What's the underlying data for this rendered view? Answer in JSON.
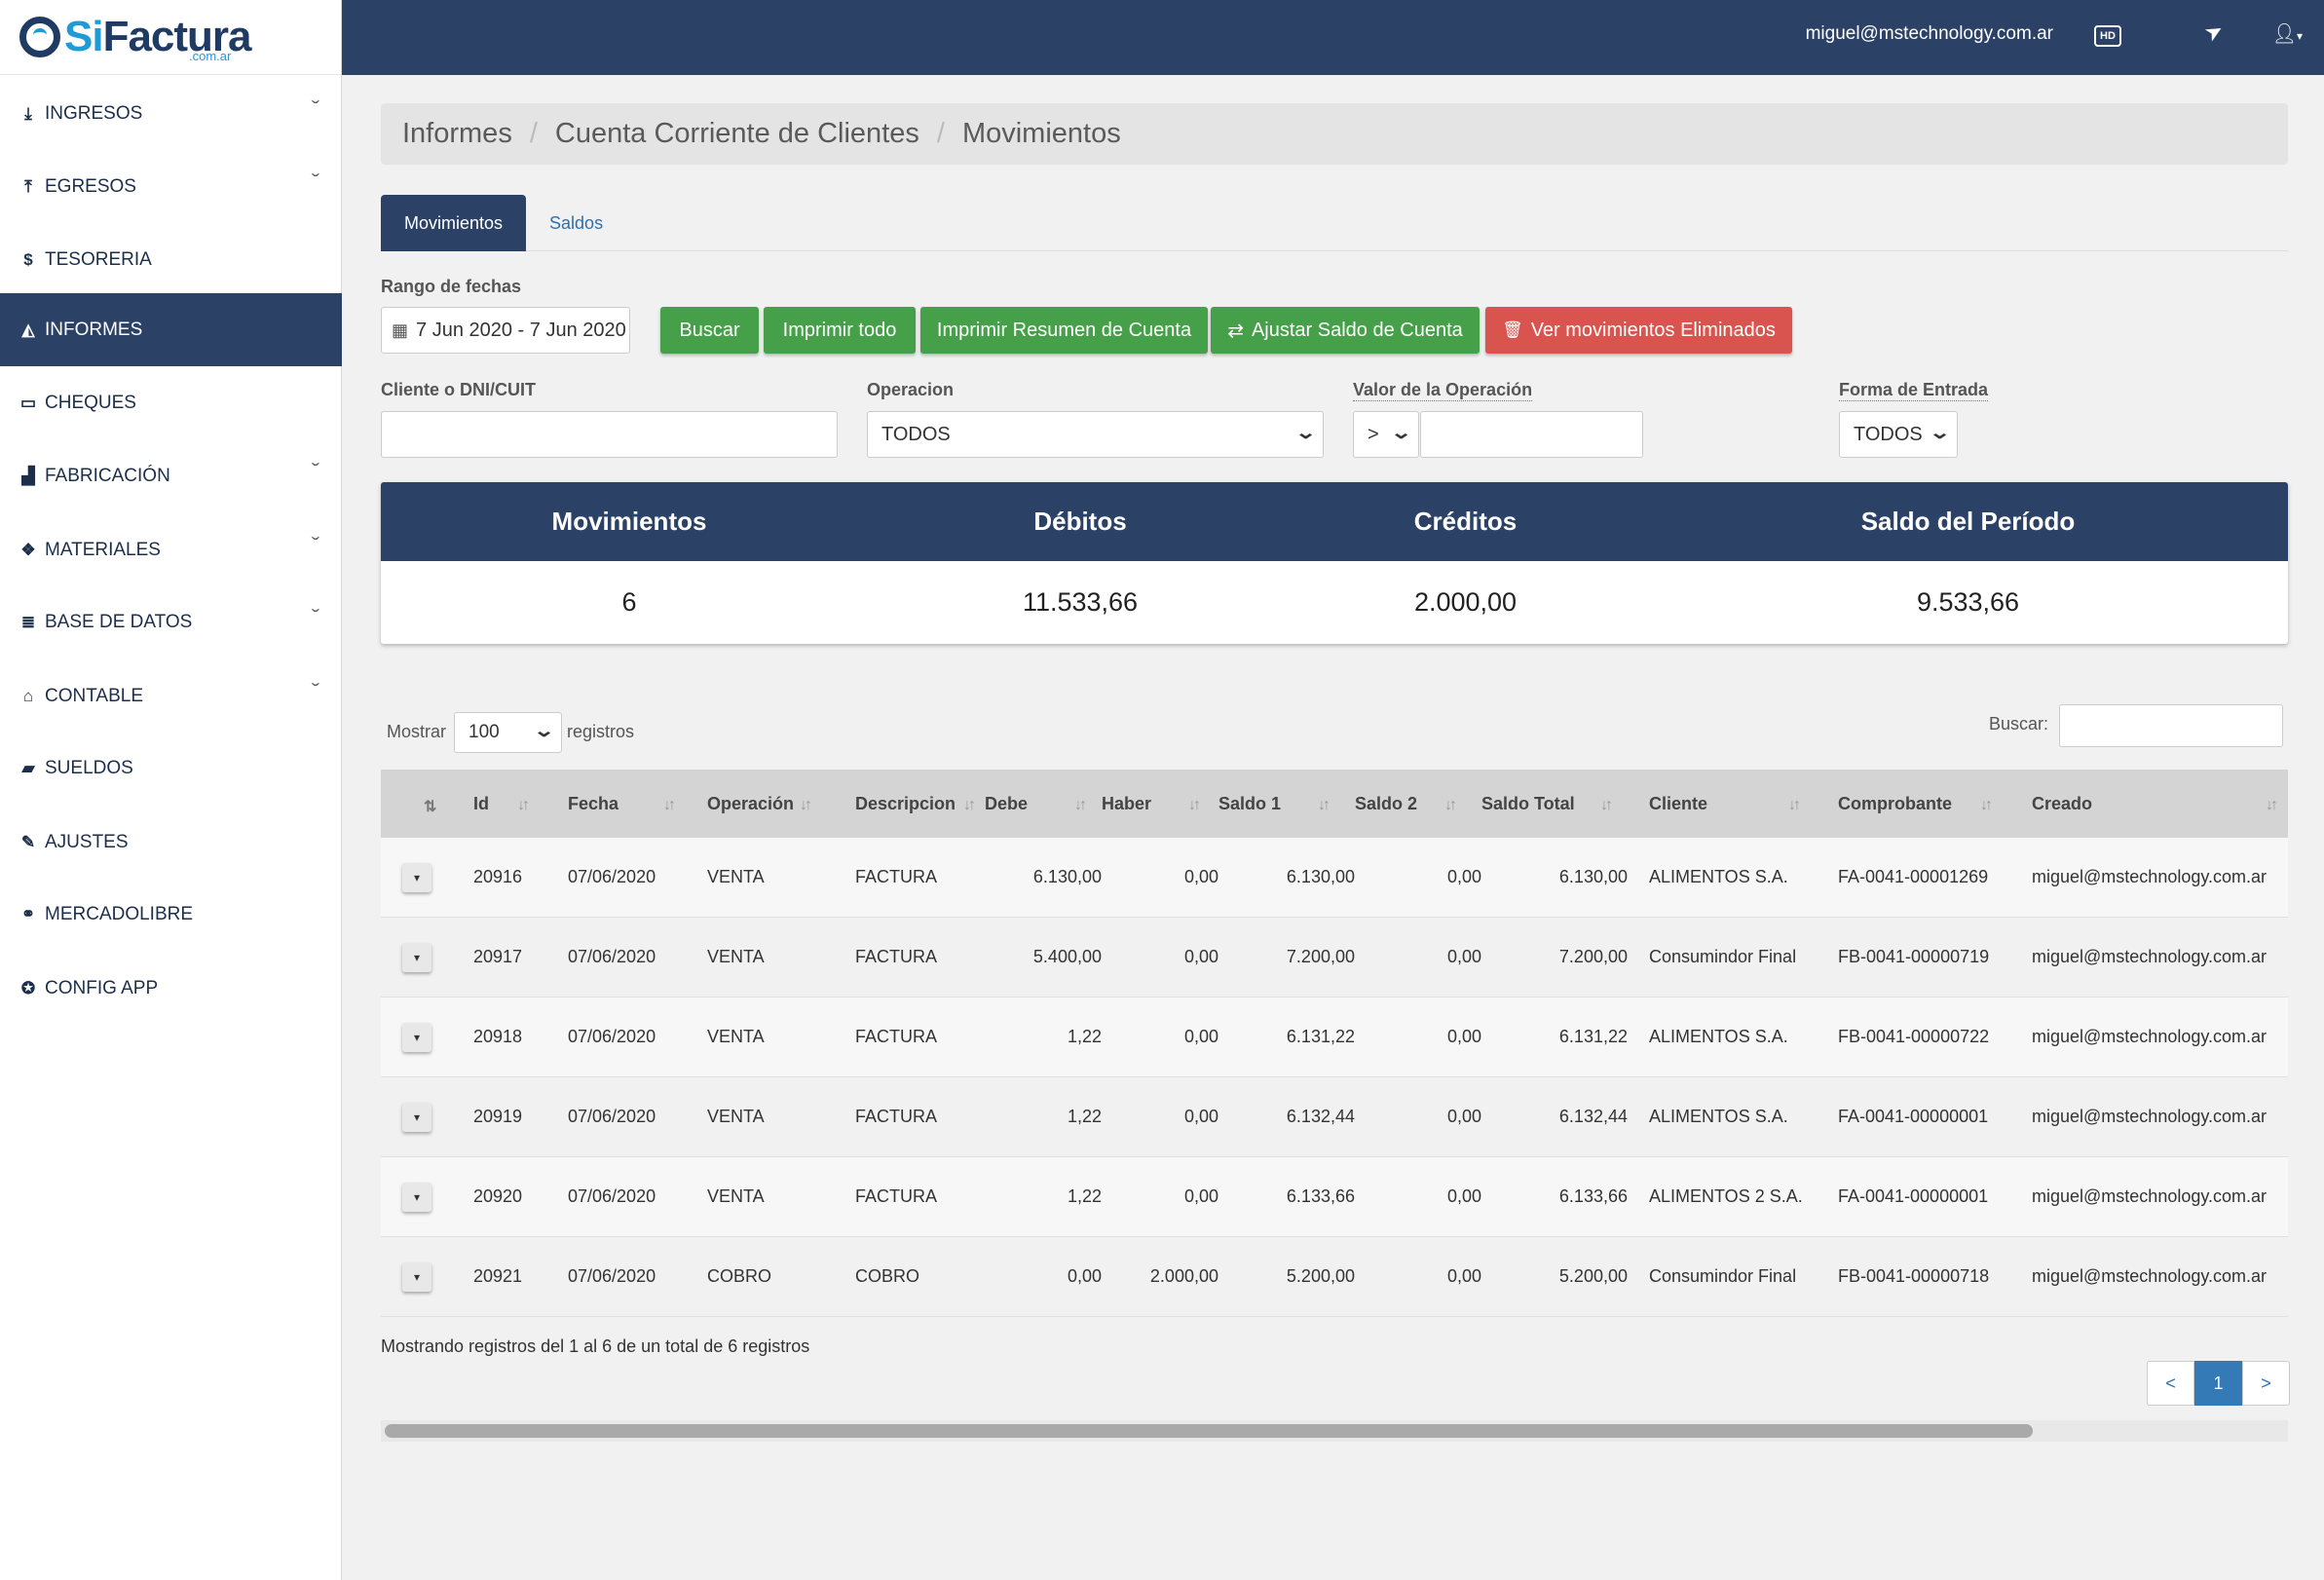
{
  "brand": {
    "logo_si": "Si",
    "logo_factura": "Factura",
    "logo_sub": ".com.ar"
  },
  "topbar": {
    "email": "miguel@mstechnology.com.ar",
    "hd_label": "HD"
  },
  "sidebar": {
    "items": [
      {
        "label": "INGRESOS",
        "icon": "download-icon",
        "glyph": "⤓",
        "chevron": true,
        "active": false
      },
      {
        "label": "EGRESOS",
        "icon": "upload-icon",
        "glyph": "⤒",
        "chevron": true,
        "active": false
      },
      {
        "label": "TESORERIA",
        "icon": "dollar-icon",
        "glyph": "$",
        "chevron": false,
        "active": false
      },
      {
        "label": "INFORMES",
        "icon": "area-chart-icon",
        "glyph": "◭",
        "chevron": false,
        "active": true
      },
      {
        "label": "CHEQUES",
        "icon": "credit-card-icon",
        "glyph": "▭",
        "chevron": false,
        "active": false
      },
      {
        "label": "FABRICACIÓN",
        "icon": "bar-chart-icon",
        "glyph": "▟",
        "chevron": true,
        "active": false
      },
      {
        "label": "MATERIALES",
        "icon": "cubes-icon",
        "glyph": "❖",
        "chevron": true,
        "active": false
      },
      {
        "label": "BASE DE DATOS",
        "icon": "database-icon",
        "glyph": "≣",
        "chevron": true,
        "active": false
      },
      {
        "label": "CONTABLE",
        "icon": "bank-icon",
        "glyph": "⌂",
        "chevron": true,
        "active": false
      },
      {
        "label": "SUELDOS",
        "icon": "book-icon",
        "glyph": "▰",
        "chevron": false,
        "active": false
      },
      {
        "label": "AJUSTES",
        "icon": "wrench-icon",
        "glyph": "✎",
        "chevron": false,
        "active": false
      },
      {
        "label": "MERCADOLIBRE",
        "icon": "handshake-icon",
        "glyph": "⚭",
        "chevron": false,
        "active": false
      },
      {
        "label": "CONFIG APP",
        "icon": "gamepad-icon",
        "glyph": "✪",
        "chevron": false,
        "active": false
      }
    ]
  },
  "breadcrumb": [
    "Informes",
    "Cuenta Corriente de Clientes",
    "Movimientos"
  ],
  "tabs": [
    {
      "label": "Movimientos",
      "active": true
    },
    {
      "label": "Saldos",
      "active": false
    }
  ],
  "filters": {
    "date_label": "Rango de fechas",
    "date_value": "7 Jun 2020 - 7 Jun 2020",
    "client_label": "Cliente o DNI/CUIT",
    "client_value": "",
    "operation_label": "Operacion",
    "operation_value": "TODOS",
    "value_label": "Valor de la Operación",
    "value_op": ">",
    "value_input": "",
    "entry_label": "Forma de Entrada",
    "entry_value": "TODOS"
  },
  "buttons": {
    "buscar": "Buscar",
    "imprimir_todo": "Imprimir todo",
    "imprimir_resumen": "Imprimir Resumen de Cuenta",
    "ajustar": "Ajustar Saldo de Cuenta",
    "ver_eliminados": "Ver movimientos Eliminados"
  },
  "summary": {
    "headers": [
      "Movimientos",
      "Débitos",
      "Créditos",
      "Saldo del Período"
    ],
    "values": [
      "6",
      "11.533,66",
      "2.000,00",
      "9.533,66"
    ]
  },
  "table_controls": {
    "show_label": "Mostrar",
    "show_value": "100",
    "records_label": "registros",
    "search_label": "Buscar:",
    "search_value": ""
  },
  "table": {
    "columns": [
      "Id",
      "Fecha",
      "Operación",
      "Descripcion",
      "Debe",
      "Haber",
      "Saldo 1",
      "Saldo 2",
      "Saldo Total",
      "Cliente",
      "Comprobante",
      "Creado"
    ],
    "rows": [
      [
        "20916",
        "07/06/2020",
        "VENTA",
        "FACTURA",
        "6.130,00",
        "0,00",
        "6.130,00",
        "0,00",
        "6.130,00",
        "ALIMENTOS S.A.",
        "FA-0041-00001269",
        "miguel@mstechnology.com.ar"
      ],
      [
        "20917",
        "07/06/2020",
        "VENTA",
        "FACTURA",
        "5.400,00",
        "0,00",
        "7.200,00",
        "0,00",
        "7.200,00",
        "Consumindor Final",
        "FB-0041-00000719",
        "miguel@mstechnology.com.ar"
      ],
      [
        "20918",
        "07/06/2020",
        "VENTA",
        "FACTURA",
        "1,22",
        "0,00",
        "6.131,22",
        "0,00",
        "6.131,22",
        "ALIMENTOS S.A.",
        "FB-0041-00000722",
        "miguel@mstechnology.com.ar"
      ],
      [
        "20919",
        "07/06/2020",
        "VENTA",
        "FACTURA",
        "1,22",
        "0,00",
        "6.132,44",
        "0,00",
        "6.132,44",
        "ALIMENTOS S.A.",
        "FA-0041-00000001",
        "miguel@mstechnology.com.ar"
      ],
      [
        "20920",
        "07/06/2020",
        "VENTA",
        "FACTURA",
        "1,22",
        "0,00",
        "6.133,66",
        "0,00",
        "6.133,66",
        "ALIMENTOS 2 S.A.",
        "FA-0041-00000001",
        "miguel@mstechnology.com.ar"
      ],
      [
        "20921",
        "07/06/2020",
        "COBRO",
        "COBRO",
        "0,00",
        "2.000,00",
        "5.200,00",
        "0,00",
        "5.200,00",
        "Consumindor Final",
        "FB-0041-00000718",
        "miguel@mstechnology.com.ar"
      ]
    ]
  },
  "footer": {
    "info": "Mostrando registros del 1 al 6 de un total de 6 registros",
    "prev": "<",
    "page": "1",
    "next": ">"
  }
}
